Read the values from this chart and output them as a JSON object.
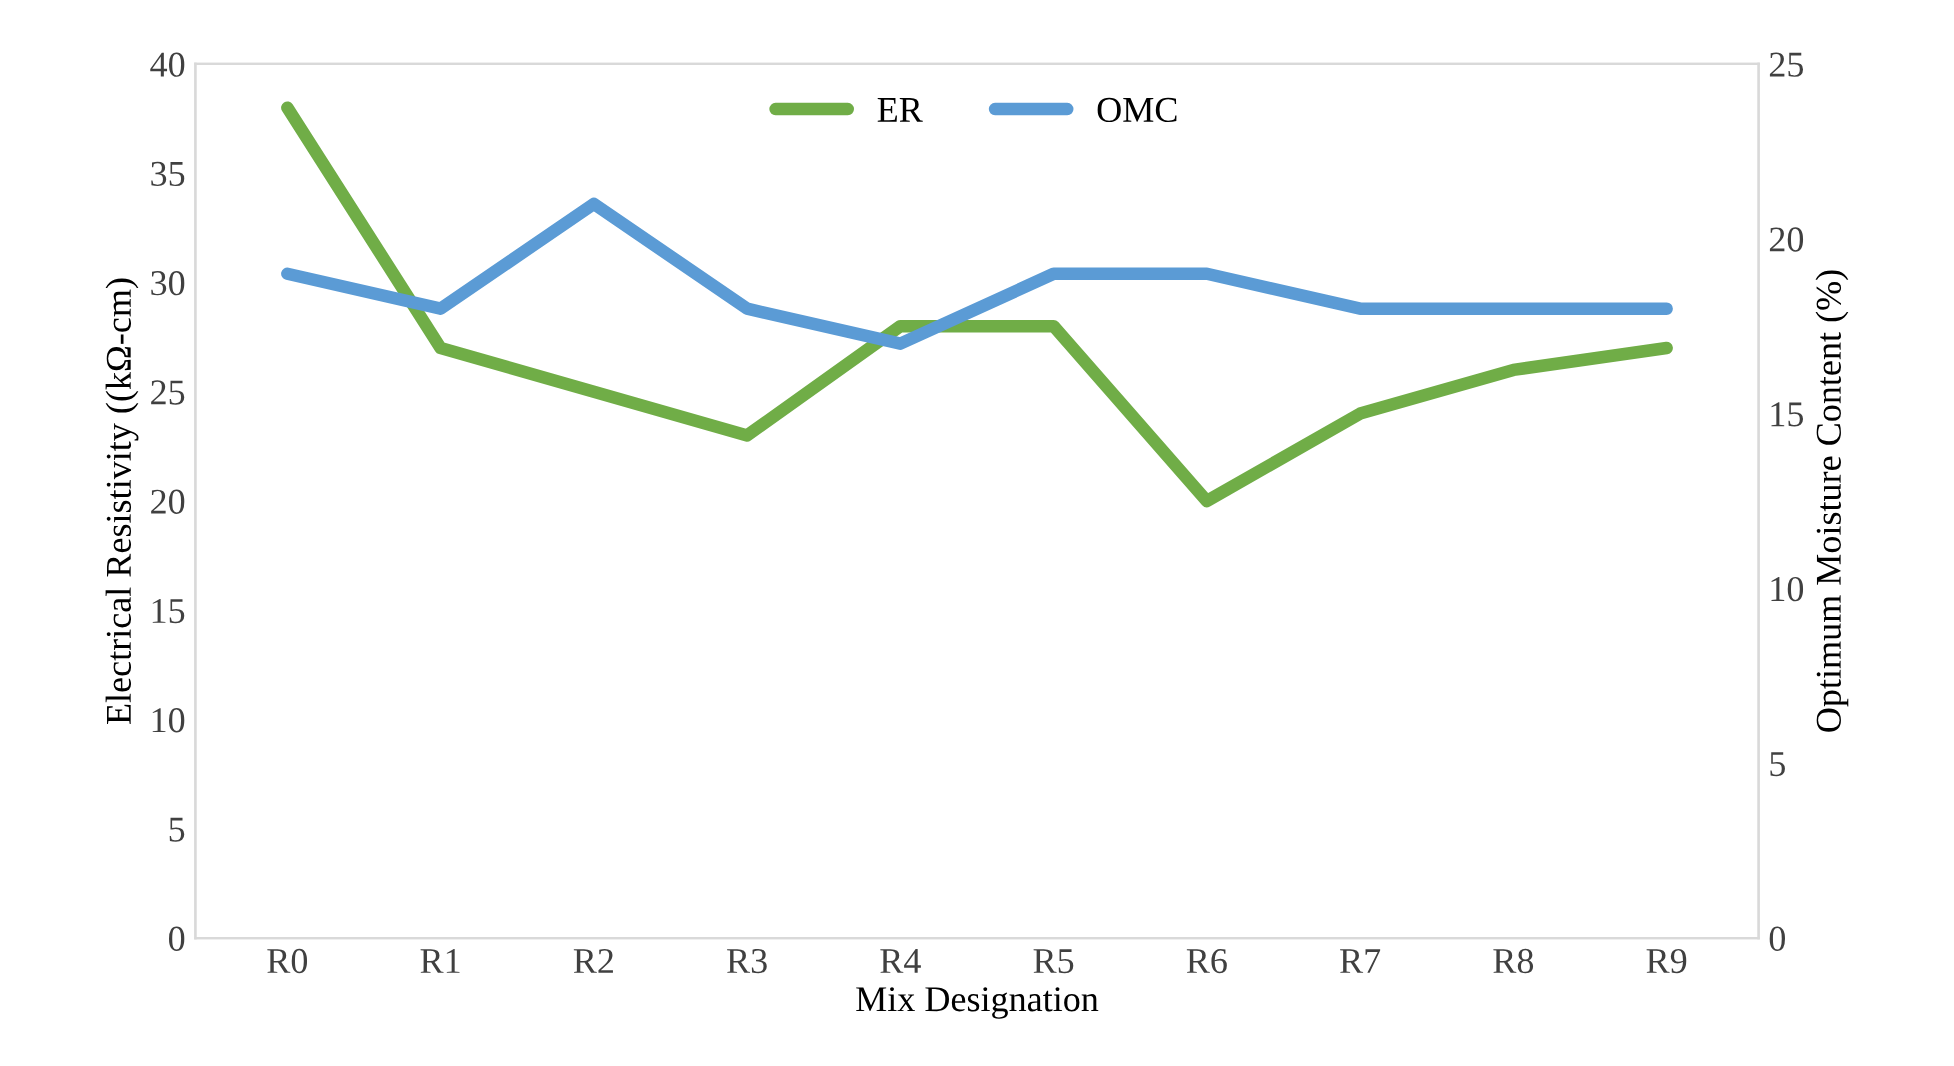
{
  "chart_data": {
    "type": "line",
    "xlabel": "Mix Designation",
    "ylabel": "Electrical Resistivity ((kΩ-cm)",
    "y2label": "Optimum Moisture Content (%)",
    "categories": [
      "R0",
      "R1",
      "R2",
      "R3",
      "R4",
      "R5",
      "R6",
      "R7",
      "R8",
      "R9"
    ],
    "series": [
      {
        "name": "ER",
        "color": "#70ad47",
        "values": [
          38,
          27,
          25,
          23,
          28,
          28,
          20,
          24,
          26,
          27
        ]
      },
      {
        "name": "OMC",
        "color": "#5b9bd5",
        "axis": "y2",
        "values": [
          19,
          18,
          21,
          18,
          17,
          19,
          19,
          18,
          18,
          18
        ]
      }
    ],
    "ylim": [
      0,
      40
    ],
    "yticks": [
      0,
      5,
      10,
      15,
      20,
      25,
      30,
      35,
      40
    ],
    "y2lim": [
      0,
      25
    ],
    "y2ticks": [
      0,
      5,
      10,
      15,
      20,
      25
    ],
    "grid": false,
    "legend": "top",
    "marker": "none",
    "line_style": "solid"
  }
}
